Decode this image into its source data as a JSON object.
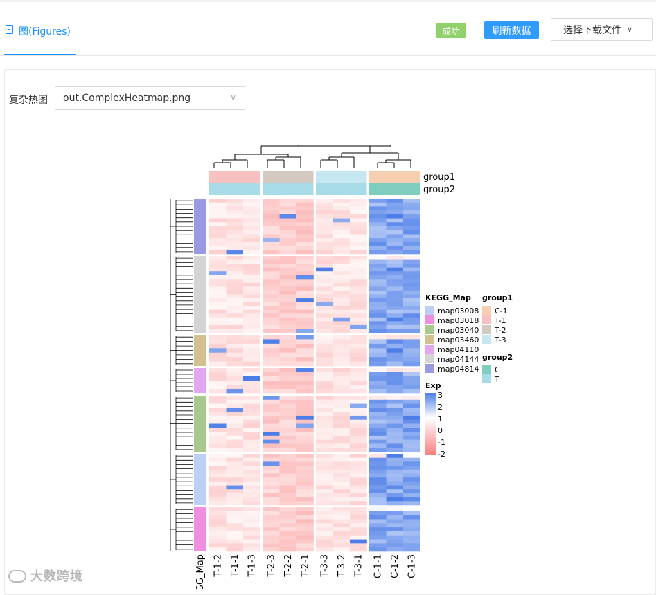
{
  "tab": {
    "label": "图(Figures)",
    "icon": "document-icon"
  },
  "header": {
    "status_badge": "成功",
    "refresh_button": "刷新数据",
    "download_select": "选择下载文件"
  },
  "colors": {
    "accent": "#1890ff",
    "success": "#8fd16b",
    "refresh": "#2f9bff"
  },
  "figure_selector": {
    "label": "复杂热图",
    "value": "out.ComplexHeatmap.png"
  },
  "heatmap": {
    "annotation_labels": {
      "group1": "group1",
      "group2": "group2"
    },
    "row_annotation_label": "KEGG_Map",
    "columns": [
      "T-1-2",
      "T-1-1",
      "T-1-3",
      "T-2-3",
      "T-2-2",
      "T-2-1",
      "T-3-3",
      "T-3-2",
      "T-3-1",
      "C-1-1",
      "C-1-2",
      "C-1-3"
    ],
    "column_group1": [
      "T-1",
      "T-1",
      "T-1",
      "T-2",
      "T-2",
      "T-2",
      "T-3",
      "T-3",
      "T-3",
      "C-1",
      "C-1",
      "C-1"
    ],
    "column_group2": [
      "T",
      "T",
      "T",
      "T",
      "T",
      "T",
      "T",
      "T",
      "T",
      "C",
      "C",
      "C"
    ],
    "kegg_order": [
      "map04814",
      "map04144",
      "map03460",
      "map04110",
      "map03040",
      "map03008",
      "map03018"
    ],
    "legend_kegg": {
      "title": "KEGG_Map",
      "items": [
        {
          "name": "map03008",
          "color": "#bcd0f5"
        },
        {
          "name": "map03018",
          "color": "#f08ee0"
        },
        {
          "name": "map03040",
          "color": "#a8c88f"
        },
        {
          "name": "map03460",
          "color": "#d4bf91"
        },
        {
          "name": "map04110",
          "color": "#e3a7f2"
        },
        {
          "name": "map04144",
          "color": "#d4d4d4"
        },
        {
          "name": "map04814",
          "color": "#9a9ae2"
        }
      ]
    },
    "legend_group1": {
      "title": "group1",
      "items": [
        {
          "name": "C-1",
          "color": "#f6cfb0"
        },
        {
          "name": "T-1",
          "color": "#f8c1c1"
        },
        {
          "name": "T-2",
          "color": "#d4c9c0"
        },
        {
          "name": "T-3",
          "color": "#c6e7f1"
        }
      ]
    },
    "legend_group2": {
      "title": "group2",
      "items": [
        {
          "name": "C",
          "color": "#7fcdbf"
        },
        {
          "name": "T",
          "color": "#a7dbe8"
        }
      ]
    },
    "legend_exp": {
      "title": "Exp",
      "ticks": [
        "3",
        "2",
        "1",
        "0",
        "-1",
        "-2"
      ]
    }
  },
  "watermark": "大数跨境"
}
